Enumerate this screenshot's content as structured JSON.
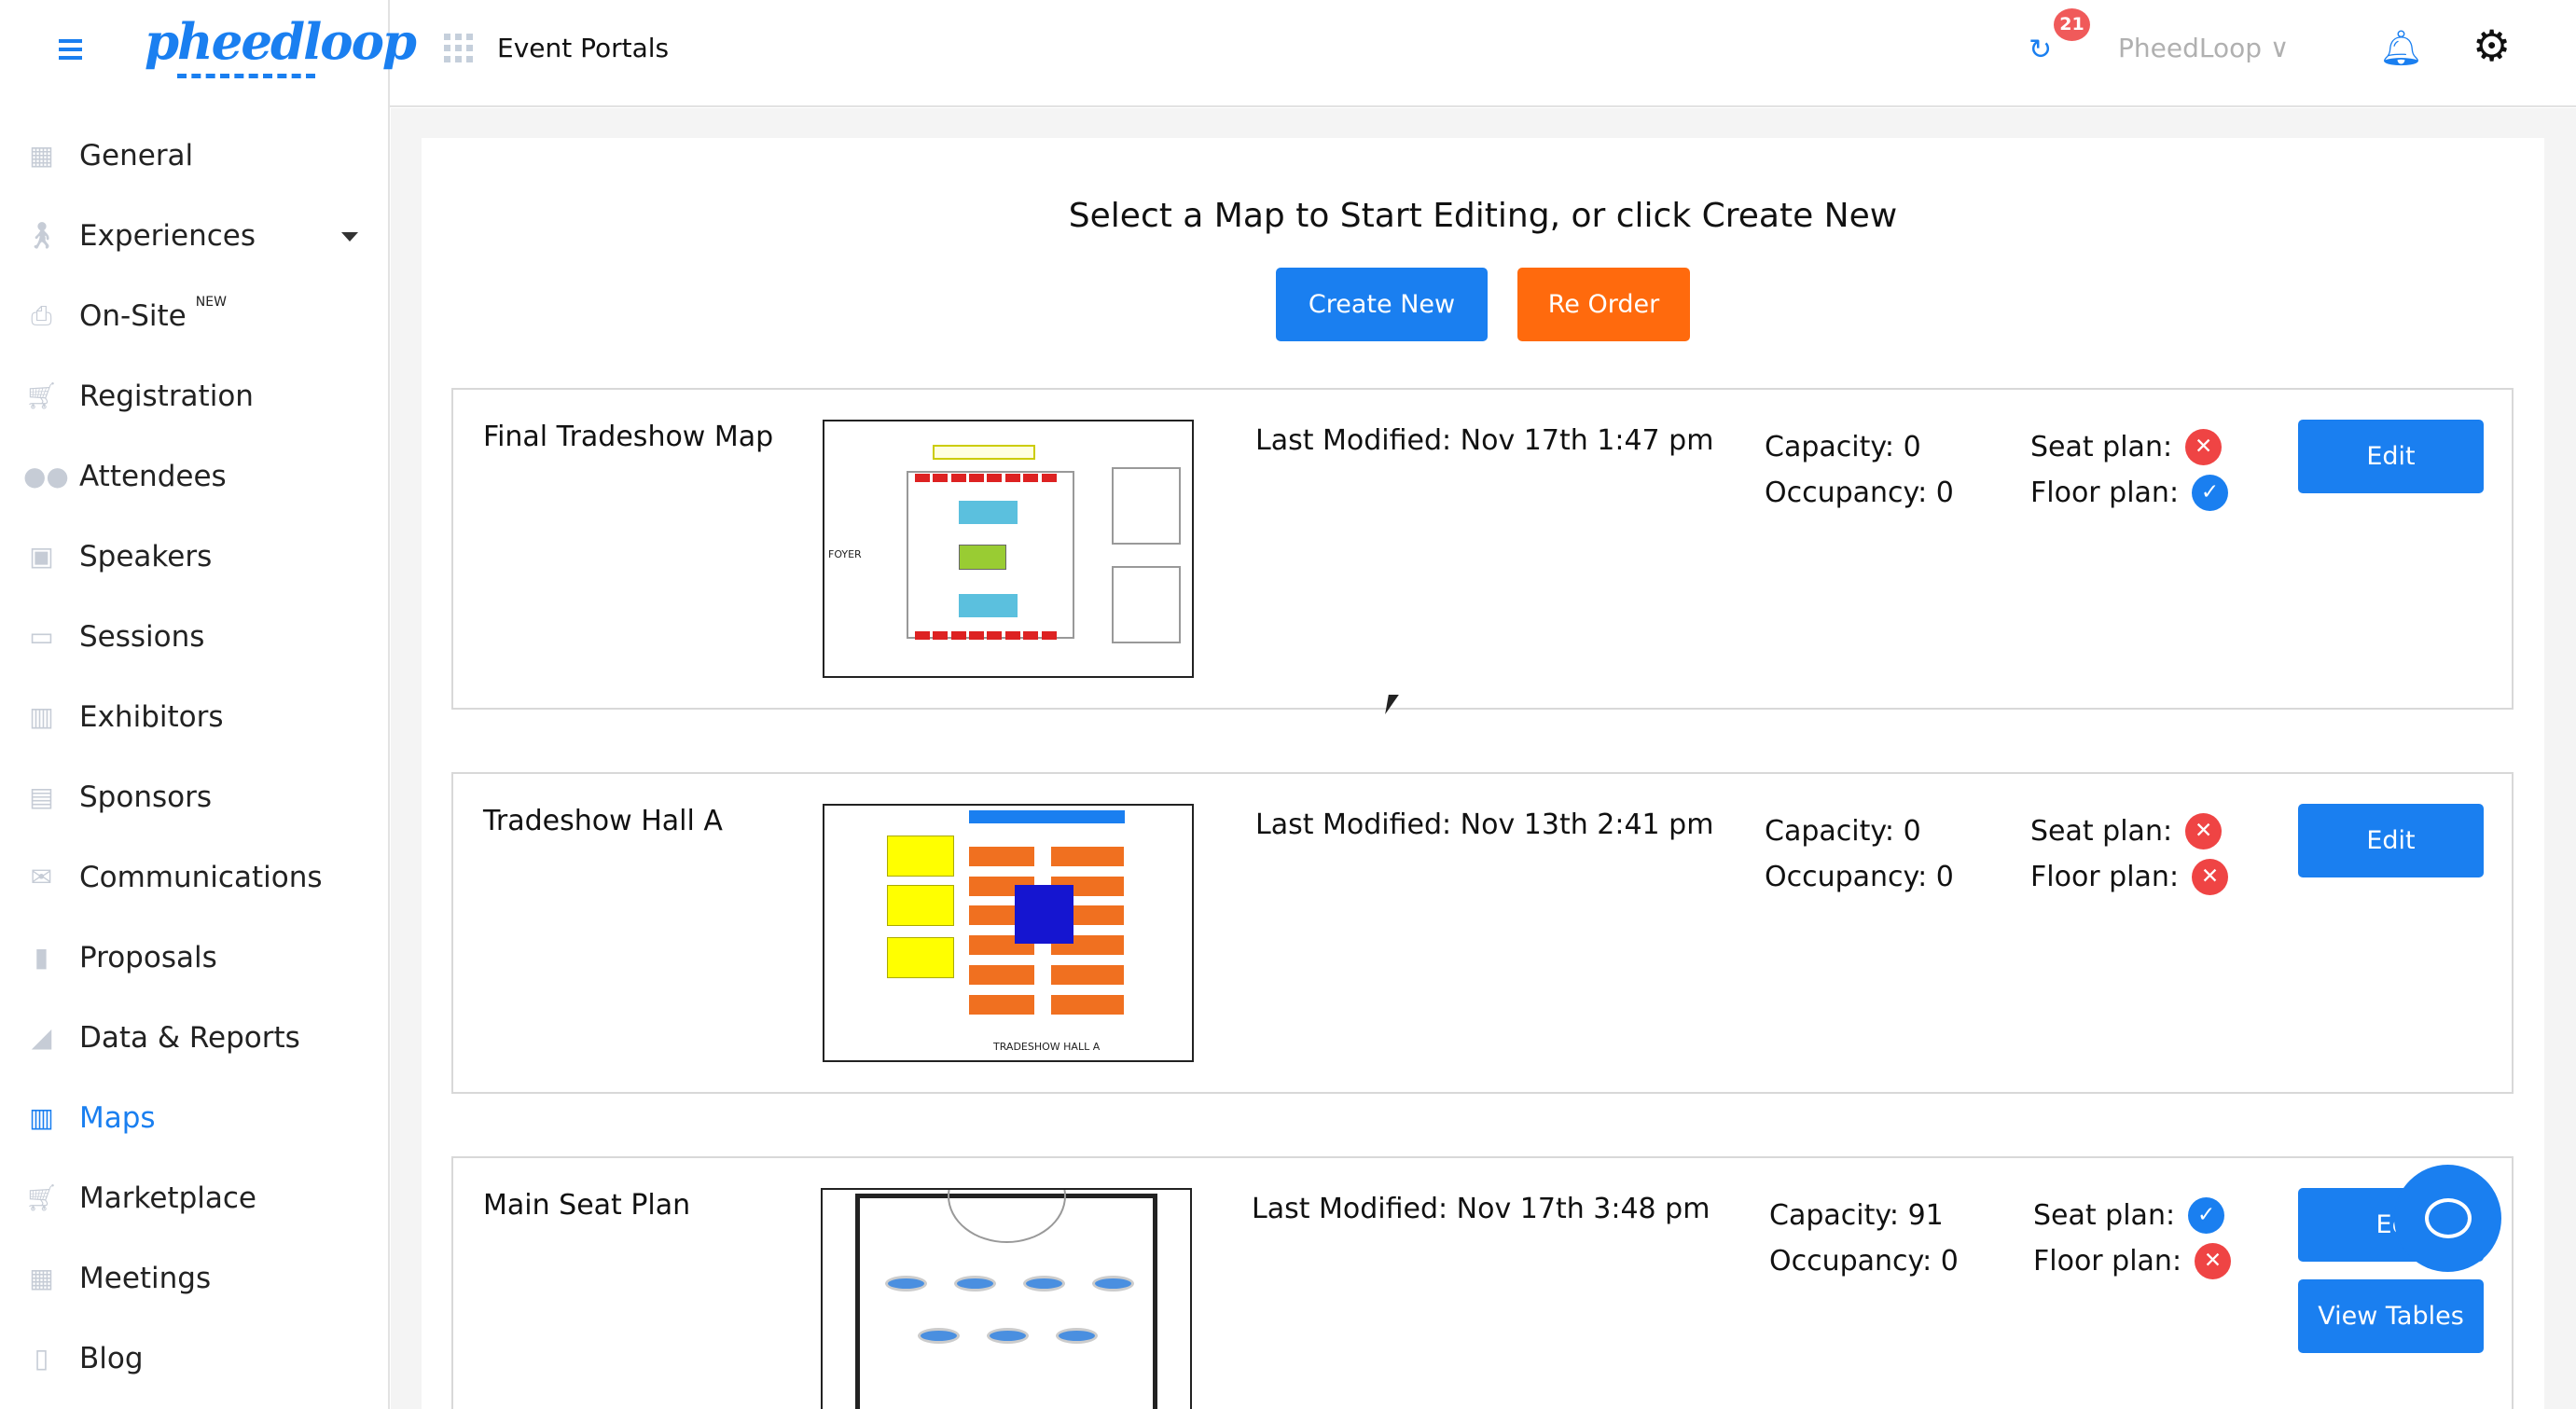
{
  "header": {
    "brand": "pheedloop",
    "section": "Event Portals",
    "notification_count": "21",
    "account": "PheedLoop"
  },
  "sidebar": {
    "items": [
      {
        "label": "General",
        "icon": "grid-icon"
      },
      {
        "label": "Experiences",
        "icon": "person-icon",
        "has_dropdown": true
      },
      {
        "label": "On-Site",
        "icon": "printer-icon",
        "badge": "NEW"
      },
      {
        "label": "Registration",
        "icon": "cart-icon"
      },
      {
        "label": "Attendees",
        "icon": "users-icon"
      },
      {
        "label": "Speakers",
        "icon": "presenter-icon"
      },
      {
        "label": "Sessions",
        "icon": "monitor-icon"
      },
      {
        "label": "Exhibitors",
        "icon": "store-icon"
      },
      {
        "label": "Sponsors",
        "icon": "badge-icon"
      },
      {
        "label": "Communications",
        "icon": "envelope-icon"
      },
      {
        "label": "Proposals",
        "icon": "file-icon"
      },
      {
        "label": "Data & Reports",
        "icon": "chart-icon"
      },
      {
        "label": "Maps",
        "icon": "map-icon",
        "active": true
      },
      {
        "label": "Marketplace",
        "icon": "cart-icon"
      },
      {
        "label": "Meetings",
        "icon": "calendar-icon"
      },
      {
        "label": "Blog",
        "icon": "document-icon"
      }
    ]
  },
  "main": {
    "heading": "Select a Map to Start Editing, or click Create New",
    "create_label": "Create New",
    "reorder_label": "Re Order",
    "colors": {
      "primary": "#1a7ff0",
      "orange": "#ff6a0d",
      "error": "#ef4444"
    },
    "maps": [
      {
        "name": "Final Tradeshow Map",
        "modified": "Last Modified: Nov 17th 1:47 pm",
        "capacity": "Capacity: 0",
        "occupancy": "Occupancy: 0",
        "seat_label": "Seat plan:",
        "seat_plan": false,
        "floor_label": "Floor plan:",
        "floor_plan": true,
        "edit_label": "Edit",
        "thumb_text": "FOYER"
      },
      {
        "name": "Tradeshow Hall A",
        "modified": "Last Modified: Nov 13th 2:41 pm",
        "capacity": "Capacity: 0",
        "occupancy": "Occupancy: 0",
        "seat_label": "Seat plan:",
        "seat_plan": false,
        "floor_label": "Floor plan:",
        "floor_plan": false,
        "edit_label": "Edit",
        "thumb_text": "TRADESHOW HALL A"
      },
      {
        "name": "Main Seat Plan",
        "modified": "Last Modified: Nov 17th 3:48 pm",
        "capacity": "Capacity: 91",
        "occupancy": "Occupancy: 0",
        "seat_label": "Seat plan:",
        "seat_plan": true,
        "floor_label": "Floor plan:",
        "floor_plan": false,
        "edit_label": "Ec",
        "view_tables_label": "View Tables"
      }
    ]
  }
}
